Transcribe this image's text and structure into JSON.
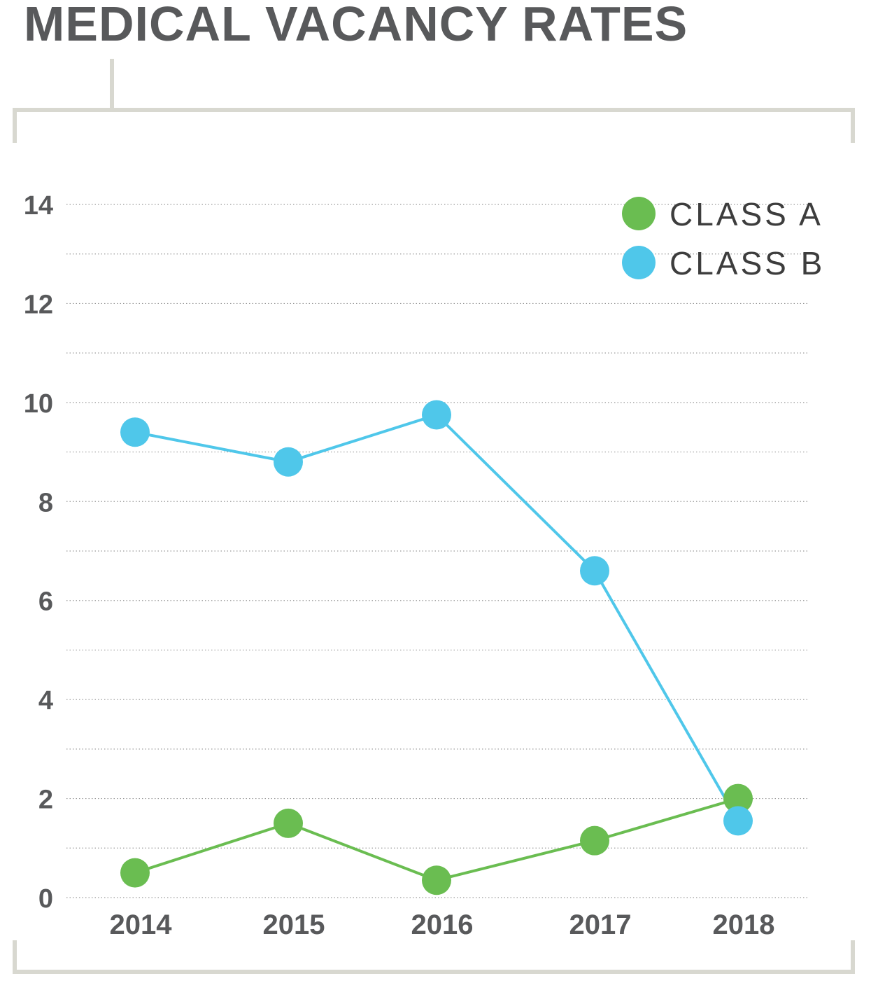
{
  "title": "MEDICAL VACANCY RATES",
  "colors": {
    "class_a": "#6abd51",
    "class_b": "#4fc7ea",
    "frame": "#d8d8d0",
    "grid": "#9a9a9a",
    "text": "#58595b"
  },
  "chart_data": {
    "type": "line",
    "title": "MEDICAL VACANCY RATES",
    "xlabel": "",
    "ylabel": "",
    "categories": [
      "2014",
      "2015",
      "2016",
      "2017",
      "2018"
    ],
    "series": [
      {
        "name": "CLASS A",
        "color": "#6abd51",
        "values": [
          0.5,
          1.5,
          0.35,
          1.15,
          2.0
        ]
      },
      {
        "name": "CLASS B",
        "color": "#4fc7ea",
        "values": [
          9.4,
          8.8,
          9.75,
          6.6,
          1.55
        ]
      }
    ],
    "ylim": [
      0,
      14
    ],
    "yticks": [
      "0",
      "2",
      "4",
      "6",
      "8",
      "10",
      "12",
      "14"
    ],
    "grid": true,
    "legend": "top-right"
  }
}
